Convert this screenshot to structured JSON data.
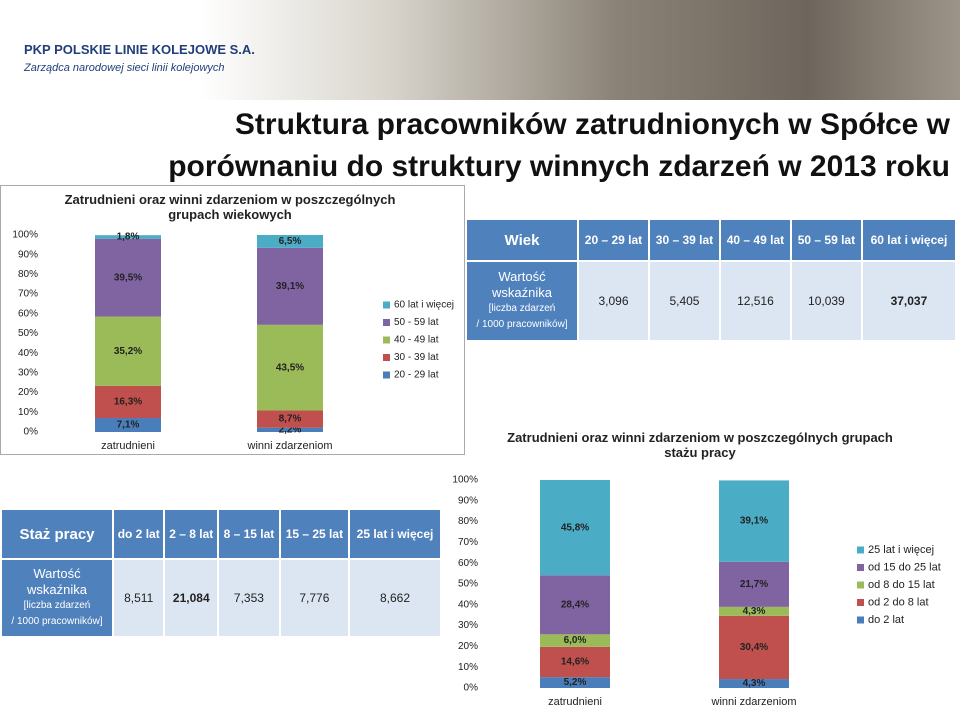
{
  "header": {
    "company": "PKP POLSKIE LINIE KOLEJOWE S.A.",
    "tagline": "Zarządca narodowej sieci linii kolejowych",
    "title": "Struktura pracowników zatrudnionych w Spółce w porównaniu do struktury winnych zdarzeń w 2013 roku"
  },
  "chart_data": [
    {
      "type": "stacked_bar",
      "title": "Zatrudnieni oraz winni zdarzeniom w poszczególnych grupach wiekowych",
      "categories": [
        "zatrudnieni",
        "winni zdarzeniom"
      ],
      "series": [
        {
          "name": "20 - 29 lat",
          "color": "#4a7ebb",
          "values": [
            7.1,
            2.2
          ],
          "value_labels": [
            "7,1%",
            "2,2%"
          ]
        },
        {
          "name": "30 - 39 lat",
          "color": "#c0504d",
          "values": [
            16.3,
            8.7
          ],
          "value_labels": [
            "16,3%",
            "8,7%"
          ]
        },
        {
          "name": "40 - 49 lat",
          "color": "#9bbb59",
          "values": [
            35.2,
            43.5
          ],
          "value_labels": [
            "35,2%",
            "43,5%"
          ]
        },
        {
          "name": "50 - 59 lat",
          "color": "#8064a2",
          "values": [
            39.5,
            39.1
          ],
          "value_labels": [
            "39,5%",
            "39,1%"
          ]
        },
        {
          "name": "60 lat i więcej",
          "color": "#4bacc6",
          "values": [
            1.8,
            6.5
          ],
          "value_labels": [
            "1,8%",
            "6,5%"
          ]
        }
      ],
      "ylim": [
        0,
        100
      ],
      "yticks": [
        {
          "value": 0,
          "label": "0%"
        },
        {
          "value": 10,
          "label": "10%"
        },
        {
          "value": 20,
          "label": "20%"
        },
        {
          "value": 30,
          "label": "30%"
        },
        {
          "value": 40,
          "label": "40%"
        },
        {
          "value": 50,
          "label": "50%"
        },
        {
          "value": 60,
          "label": "60%"
        },
        {
          "value": 70,
          "label": "70%"
        },
        {
          "value": 80,
          "label": "80%"
        },
        {
          "value": 90,
          "label": "90%"
        },
        {
          "value": 100,
          "label": "100%"
        }
      ],
      "grid": false,
      "legend": "right"
    },
    {
      "type": "stacked_bar",
      "title": "Zatrudnieni oraz winni zdarzeniom w poszczególnych grupach stażu pracy",
      "categories": [
        "zatrudnieni",
        "winni zdarzeniom"
      ],
      "series": [
        {
          "name": "do 2 lat",
          "color": "#4a7ebb",
          "values": [
            5.2,
            4.3
          ],
          "value_labels": [
            "5,2%",
            "4,3%"
          ]
        },
        {
          "name": "od 2 do 8 lat",
          "color": "#c0504d",
          "values": [
            14.6,
            30.4
          ],
          "value_labels": [
            "14,6%",
            "30,4%"
          ]
        },
        {
          "name": "od 8 do 15 lat",
          "color": "#9bbb59",
          "values": [
            6.0,
            4.3
          ],
          "value_labels": [
            "6,0%",
            "4,3%"
          ]
        },
        {
          "name": "od 15 do 25 lat",
          "color": "#8064a2",
          "values": [
            28.4,
            21.7
          ],
          "value_labels": [
            "28,4%",
            "21,7%"
          ]
        },
        {
          "name": "25 lat i więcej",
          "color": "#4bacc6",
          "values": [
            45.8,
            39.1
          ],
          "value_labels": [
            "45,8%",
            "39,1%"
          ]
        }
      ],
      "ylim": [
        0,
        100
      ],
      "yticks": [
        {
          "value": 0,
          "label": "0%"
        },
        {
          "value": 10,
          "label": "10%"
        },
        {
          "value": 20,
          "label": "20%"
        },
        {
          "value": 30,
          "label": "30%"
        },
        {
          "value": 40,
          "label": "40%"
        },
        {
          "value": 50,
          "label": "50%"
        },
        {
          "value": 60,
          "label": "60%"
        },
        {
          "value": 70,
          "label": "70%"
        },
        {
          "value": 80,
          "label": "80%"
        },
        {
          "value": 90,
          "label": "90%"
        },
        {
          "value": 100,
          "label": "100%"
        }
      ],
      "grid": false,
      "legend": "right"
    }
  ],
  "age_table": {
    "header": [
      "Wiek",
      "20 – 29 lat",
      "30 – 39 lat",
      "40 – 49 lat",
      "50 – 59 lat",
      "60 lat i więcej"
    ],
    "row_label": [
      "Wartość wskaźnika",
      "[liczba zdarzeń",
      "/ 1000 pracowników]"
    ],
    "values": [
      "3,096",
      "5,405",
      "12,516",
      "10,039",
      "37,037"
    ]
  },
  "tenure_table": {
    "header": [
      "Staż pracy",
      "do 2 lat",
      "2 – 8 lat",
      "8 – 15 lat",
      "15 – 25 lat",
      "25 lat i więcej"
    ],
    "row_label": [
      "Wartość wskaźnika",
      "[liczba zdarzeń",
      "/ 1000 pracowników]"
    ],
    "values": [
      "8,511",
      "21,084",
      "7,353",
      "7,776",
      "8,662"
    ]
  }
}
